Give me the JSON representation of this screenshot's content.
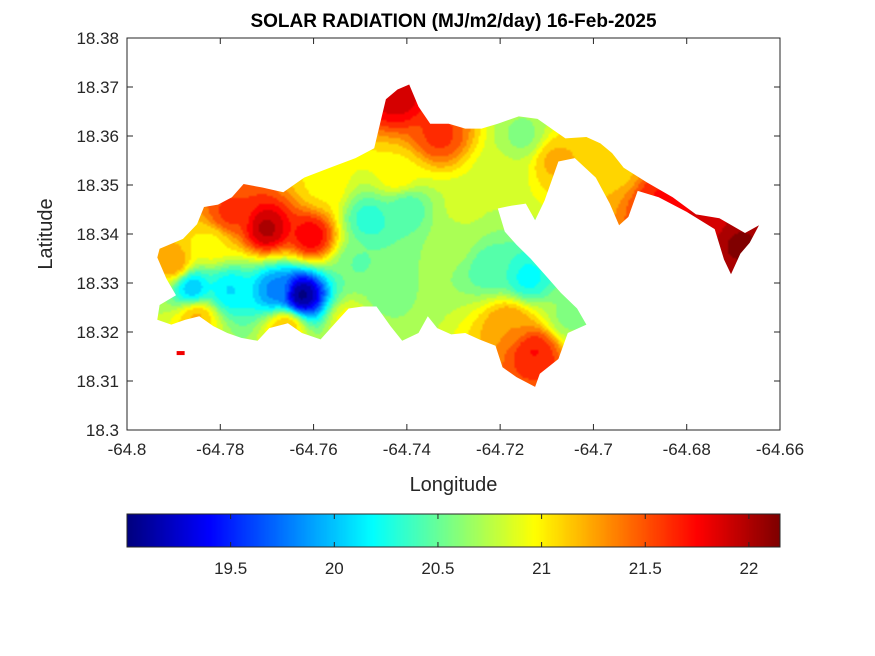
{
  "chart_data": {
    "type": "heatmap",
    "title": "SOLAR RADIATION (MJ/m2/day) 16-Feb-2025",
    "xlabel": "Longitude",
    "ylabel": "Latitude",
    "xlim": [
      -64.8,
      -64.66
    ],
    "ylim": [
      18.3,
      18.38
    ],
    "xticks": [
      -64.8,
      -64.78,
      -64.76,
      -64.74,
      -64.72,
      -64.7,
      -64.68,
      -64.66
    ],
    "xtick_labels": [
      "-64.8",
      "-64.78",
      "-64.76",
      "-64.74",
      "-64.72",
      "-64.7",
      "-64.68",
      "-64.66"
    ],
    "yticks": [
      18.3,
      18.31,
      18.32,
      18.33,
      18.34,
      18.35,
      18.36,
      18.37,
      18.38
    ],
    "ytick_labels": [
      "18.3",
      "18.31",
      "18.32",
      "18.33",
      "18.34",
      "18.35",
      "18.36",
      "18.37",
      "18.38"
    ],
    "grid": false,
    "colormap": "jet",
    "colorbar": {
      "orientation": "horizontal",
      "location": "bottom",
      "clim": [
        19.0,
        22.15
      ],
      "ticks": [
        19.5,
        20,
        20.5,
        21,
        21.5,
        22
      ],
      "tick_labels": [
        "19.5",
        "20",
        "20.5",
        "21",
        "21.5",
        "22"
      ]
    },
    "land_outline": [
      [
        -64.793,
        18.337
      ],
      [
        -64.788,
        18.339
      ],
      [
        -64.785,
        18.342
      ],
      [
        -64.7835,
        18.3455
      ],
      [
        -64.7805,
        18.346
      ],
      [
        -64.7775,
        18.3475
      ],
      [
        -64.775,
        18.3502
      ],
      [
        -64.771,
        18.3495
      ],
      [
        -64.7665,
        18.3485
      ],
      [
        -64.762,
        18.3515
      ],
      [
        -64.7565,
        18.3535
      ],
      [
        -64.751,
        18.3555
      ],
      [
        -64.747,
        18.3575
      ],
      [
        -64.7455,
        18.3635
      ],
      [
        -64.7445,
        18.3675
      ],
      [
        -64.742,
        18.3695
      ],
      [
        -64.7395,
        18.3705
      ],
      [
        -64.7375,
        18.366
      ],
      [
        -64.735,
        18.3625
      ],
      [
        -64.731,
        18.3625
      ],
      [
        -64.7275,
        18.3615
      ],
      [
        -64.724,
        18.3615
      ],
      [
        -64.7205,
        18.3625
      ],
      [
        -64.716,
        18.364
      ],
      [
        -64.712,
        18.3635
      ],
      [
        -64.709,
        18.3615
      ],
      [
        -64.706,
        18.3595
      ],
      [
        -64.7015,
        18.3598
      ],
      [
        -64.6985,
        18.3585
      ],
      [
        -64.696,
        18.3565
      ],
      [
        -64.6935,
        18.3535
      ],
      [
        -64.6885,
        18.3505
      ],
      [
        -64.683,
        18.3475
      ],
      [
        -64.678,
        18.344
      ],
      [
        -64.673,
        18.3432
      ],
      [
        -64.6675,
        18.3402
      ],
      [
        -64.6645,
        18.3418
      ],
      [
        -64.6665,
        18.3382
      ],
      [
        -64.6685,
        18.336
      ],
      [
        -64.6705,
        18.3318
      ],
      [
        -64.672,
        18.3348
      ],
      [
        -64.674,
        18.341
      ],
      [
        -64.68,
        18.3445
      ],
      [
        -64.686,
        18.3475
      ],
      [
        -64.6905,
        18.3488
      ],
      [
        -64.6925,
        18.3435
      ],
      [
        -64.6945,
        18.3418
      ],
      [
        -64.6965,
        18.3462
      ],
      [
        -64.6995,
        18.3515
      ],
      [
        -64.704,
        18.3555
      ],
      [
        -64.7075,
        18.3548
      ],
      [
        -64.7105,
        18.3468
      ],
      [
        -64.7125,
        18.3428
      ],
      [
        -64.7145,
        18.3462
      ],
      [
        -64.7175,
        18.3458
      ],
      [
        -64.7205,
        18.3452
      ],
      [
        -64.719,
        18.3405
      ],
      [
        -64.7165,
        18.3378
      ],
      [
        -64.7135,
        18.335
      ],
      [
        -64.7105,
        18.3318
      ],
      [
        -64.707,
        18.328
      ],
      [
        -64.7035,
        18.3248
      ],
      [
        -64.7015,
        18.3215
      ],
      [
        -64.7055,
        18.3198
      ],
      [
        -64.7075,
        18.3145
      ],
      [
        -64.7115,
        18.3115
      ],
      [
        -64.7125,
        18.3088
      ],
      [
        -64.7165,
        18.3108
      ],
      [
        -64.7195,
        18.3128
      ],
      [
        -64.721,
        18.3172
      ],
      [
        -64.7245,
        18.3185
      ],
      [
        -64.7275,
        18.3198
      ],
      [
        -64.7305,
        18.3195
      ],
      [
        -64.7335,
        18.3208
      ],
      [
        -64.7355,
        18.3232
      ],
      [
        -64.7375,
        18.3198
      ],
      [
        -64.741,
        18.3182
      ],
      [
        -64.7435,
        18.3212
      ],
      [
        -64.7465,
        18.3252
      ],
      [
        -64.7495,
        18.3252
      ],
      [
        -64.7525,
        18.3248
      ],
      [
        -64.755,
        18.3222
      ],
      [
        -64.7585,
        18.3185
      ],
      [
        -64.7625,
        18.3198
      ],
      [
        -64.7655,
        18.3218
      ],
      [
        -64.7695,
        18.3208
      ],
      [
        -64.772,
        18.3182
      ],
      [
        -64.7755,
        18.3188
      ],
      [
        -64.7785,
        18.3198
      ],
      [
        -64.7815,
        18.3212
      ],
      [
        -64.7845,
        18.3232
      ],
      [
        -64.7875,
        18.3225
      ],
      [
        -64.7905,
        18.3215
      ],
      [
        -64.7935,
        18.3225
      ],
      [
        -64.793,
        18.3255
      ],
      [
        -64.7895,
        18.3275
      ],
      [
        -64.7915,
        18.3308
      ],
      [
        -64.7935,
        18.3352
      ]
    ],
    "field_hotspots": [
      {
        "lon": -64.77,
        "lat": 18.341,
        "value": 22.0
      },
      {
        "lon": -64.7605,
        "lat": 18.3395,
        "value": 21.8
      },
      {
        "lon": -64.778,
        "lat": 18.344,
        "value": 21.6
      },
      {
        "lon": -64.7625,
        "lat": 18.3275,
        "value": 19.0
      },
      {
        "lon": -64.768,
        "lat": 18.3285,
        "value": 19.8
      },
      {
        "lon": -64.778,
        "lat": 18.3285,
        "value": 20.1
      },
      {
        "lon": -64.786,
        "lat": 18.329,
        "value": 20.0
      },
      {
        "lon": -64.79,
        "lat": 18.334,
        "value": 21.3
      },
      {
        "lon": -64.782,
        "lat": 18.338,
        "value": 21.0
      },
      {
        "lon": -64.785,
        "lat": 18.323,
        "value": 21.2
      },
      {
        "lon": -64.748,
        "lat": 18.343,
        "value": 20.3
      },
      {
        "lon": -64.74,
        "lat": 18.345,
        "value": 20.4
      },
      {
        "lon": -64.75,
        "lat": 18.334,
        "value": 20.5
      },
      {
        "lon": -64.745,
        "lat": 18.327,
        "value": 20.6
      },
      {
        "lon": -64.73,
        "lat": 18.338,
        "value": 20.7
      },
      {
        "lon": -64.722,
        "lat": 18.333,
        "value": 20.4
      },
      {
        "lon": -64.714,
        "lat": 18.331,
        "value": 20.2
      },
      {
        "lon": -64.728,
        "lat": 18.345,
        "value": 20.8
      },
      {
        "lon": -64.733,
        "lat": 18.36,
        "value": 21.6
      },
      {
        "lon": -64.742,
        "lat": 18.352,
        "value": 21.0
      },
      {
        "lon": -64.72,
        "lat": 18.352,
        "value": 20.8
      },
      {
        "lon": -64.715,
        "lat": 18.36,
        "value": 20.6
      },
      {
        "lon": -64.708,
        "lat": 18.355,
        "value": 21.2
      },
      {
        "lon": -64.742,
        "lat": 18.368,
        "value": 21.9
      },
      {
        "lon": -64.7125,
        "lat": 18.316,
        "value": 21.7
      },
      {
        "lon": -64.718,
        "lat": 18.322,
        "value": 21.3
      },
      {
        "lon": -64.705,
        "lat": 18.323,
        "value": 20.6
      },
      {
        "lon": -64.695,
        "lat": 18.354,
        "value": 21.1
      },
      {
        "lon": -64.685,
        "lat": 18.347,
        "value": 21.7
      },
      {
        "lon": -64.675,
        "lat": 18.342,
        "value": 21.9
      },
      {
        "lon": -64.669,
        "lat": 18.338,
        "value": 22.1
      },
      {
        "lon": -64.752,
        "lat": 18.322,
        "value": 21.0
      },
      {
        "lon": -64.766,
        "lat": 18.321,
        "value": 21.2
      },
      {
        "lon": -64.758,
        "lat": 18.35,
        "value": 21.0
      }
    ],
    "detached_islets": [
      {
        "lon": -64.7885,
        "lat": 18.3157,
        "value": 21.8
      }
    ]
  }
}
